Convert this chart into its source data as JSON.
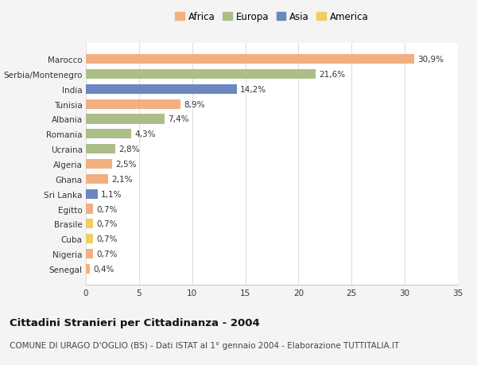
{
  "categories": [
    "Marocco",
    "Serbia/Montenegro",
    "India",
    "Tunisia",
    "Albania",
    "Romania",
    "Ucraina",
    "Algeria",
    "Ghana",
    "Sri Lanka",
    "Egitto",
    "Brasile",
    "Cuba",
    "Nigeria",
    "Senegal"
  ],
  "values": [
    30.9,
    21.6,
    14.2,
    8.9,
    7.4,
    4.3,
    2.8,
    2.5,
    2.1,
    1.1,
    0.7,
    0.7,
    0.7,
    0.7,
    0.4
  ],
  "labels": [
    "30,9%",
    "21,6%",
    "14,2%",
    "8,9%",
    "7,4%",
    "4,3%",
    "2,8%",
    "2,5%",
    "2,1%",
    "1,1%",
    "0,7%",
    "0,7%",
    "0,7%",
    "0,7%",
    "0,4%"
  ],
  "continents": [
    "Africa",
    "Europa",
    "Asia",
    "Africa",
    "Europa",
    "Europa",
    "Europa",
    "Africa",
    "Africa",
    "Asia",
    "Africa",
    "America",
    "America",
    "Africa",
    "Africa"
  ],
  "colors": {
    "Africa": "#F2B080",
    "Europa": "#ABBE88",
    "Asia": "#6B87C0",
    "America": "#F0CE5E"
  },
  "legend_order": [
    "Africa",
    "Europa",
    "Asia",
    "America"
  ],
  "xlim": [
    0,
    35
  ],
  "xticks": [
    0,
    5,
    10,
    15,
    20,
    25,
    30,
    35
  ],
  "title": "Cittadini Stranieri per Cittadinanza - 2004",
  "subtitle": "COMUNE DI URAGO D'OGLIO (BS) - Dati ISTAT al 1° gennaio 2004 - Elaborazione TUTTITALIA.IT",
  "background_color": "#F4F4F4",
  "plot_background": "#FFFFFF",
  "grid_color": "#DDDDDD",
  "bar_height": 0.65,
  "label_fontsize": 7.5,
  "title_fontsize": 9.5,
  "subtitle_fontsize": 7.5,
  "tick_fontsize": 7.5,
  "legend_fontsize": 8.5
}
